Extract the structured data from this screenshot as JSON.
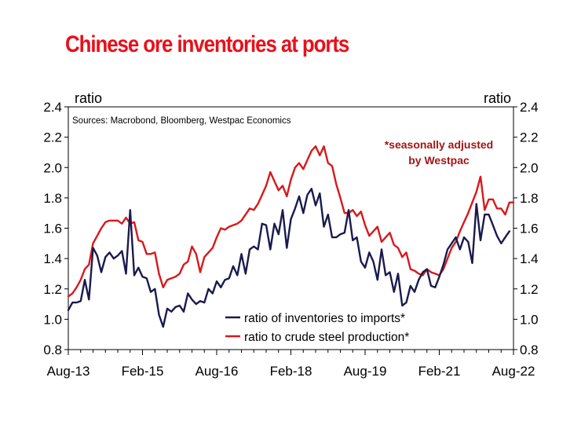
{
  "title": "Chinese ore inventories at ports",
  "chart_data": {
    "type": "line",
    "ylabel_left": "ratio",
    "ylabel_right": "ratio",
    "source": "Sources: Macrobond, Bloomberg, Westpac Economics",
    "annotation": [
      "*seasonally adjusted",
      "by Westpac"
    ],
    "ylim": [
      0.8,
      2.4
    ],
    "yticks": [
      "0.8",
      "1.0",
      "1.2",
      "1.4",
      "1.6",
      "1.8",
      "2.0",
      "2.2",
      "2.4"
    ],
    "x_start": "2013-08",
    "xlim_months": [
      0,
      108
    ],
    "xticks": [
      {
        "label": "Aug-13",
        "month": 0
      },
      {
        "label": "Feb-15",
        "month": 18
      },
      {
        "label": "Aug-16",
        "month": 36
      },
      {
        "label": "Feb-18",
        "month": 54
      },
      {
        "label": "Aug-19",
        "month": 72
      },
      {
        "label": "Feb-21",
        "month": 90
      },
      {
        "label": "Aug-22",
        "month": 108
      }
    ],
    "legend_position": "bottom-right",
    "series": [
      {
        "name": "ratio of inventories to imports*",
        "color": "#1a1a4e",
        "values": [
          1.06,
          1.11,
          1.11,
          1.12,
          1.26,
          1.13,
          1.47,
          1.42,
          1.31,
          1.41,
          1.44,
          1.4,
          1.42,
          1.45,
          1.3,
          1.72,
          1.29,
          1.34,
          1.28,
          1.27,
          1.18,
          1.2,
          1.03,
          0.95,
          1.07,
          1.05,
          1.08,
          1.09,
          1.05,
          1.17,
          1.13,
          1.1,
          1.12,
          1.11,
          1.2,
          1.17,
          1.25,
          1.21,
          1.26,
          1.27,
          1.35,
          1.29,
          1.43,
          1.3,
          1.46,
          1.48,
          1.46,
          1.63,
          1.62,
          1.46,
          1.63,
          1.56,
          1.72,
          1.47,
          1.66,
          1.73,
          1.81,
          1.7,
          1.82,
          1.86,
          1.75,
          1.83,
          1.61,
          1.69,
          1.54,
          1.54,
          1.56,
          1.57,
          1.72,
          1.52,
          1.54,
          1.38,
          1.34,
          1.44,
          1.38,
          1.26,
          1.46,
          1.29,
          1.31,
          1.18,
          1.3,
          1.09,
          1.11,
          1.22,
          1.18,
          1.26,
          1.31,
          1.33,
          1.22,
          1.21,
          1.28,
          1.36,
          1.46,
          1.5,
          1.54,
          1.46,
          1.54,
          1.51,
          1.37,
          1.76,
          1.52,
          1.69,
          1.69,
          1.62,
          1.55,
          1.5,
          1.54,
          1.58
        ]
      },
      {
        "name": "ratio to crude steel production*",
        "color": "#d7191c",
        "values": [
          1.15,
          1.17,
          1.21,
          1.26,
          1.33,
          1.36,
          1.5,
          1.55,
          1.6,
          1.64,
          1.65,
          1.65,
          1.65,
          1.63,
          1.67,
          1.63,
          1.64,
          1.52,
          1.51,
          1.43,
          1.43,
          1.44,
          1.3,
          1.21,
          1.26,
          1.27,
          1.28,
          1.3,
          1.36,
          1.38,
          1.48,
          1.43,
          1.31,
          1.41,
          1.44,
          1.47,
          1.54,
          1.6,
          1.59,
          1.61,
          1.62,
          1.63,
          1.65,
          1.69,
          1.73,
          1.72,
          1.76,
          1.82,
          1.88,
          1.97,
          1.91,
          1.85,
          1.88,
          1.81,
          1.92,
          2.0,
          2.03,
          1.99,
          2.05,
          2.11,
          2.14,
          2.08,
          2.14,
          2.03,
          2.01,
          1.89,
          1.8,
          1.7,
          1.7,
          1.72,
          1.68,
          1.71,
          1.62,
          1.55,
          1.58,
          1.61,
          1.51,
          1.54,
          1.57,
          1.49,
          1.47,
          1.41,
          1.44,
          1.33,
          1.32,
          1.3,
          1.29,
          1.33,
          1.31,
          1.3,
          1.29,
          1.33,
          1.4,
          1.47,
          1.51,
          1.58,
          1.64,
          1.7,
          1.77,
          1.84,
          1.94,
          1.72,
          1.79,
          1.79,
          1.73,
          1.73,
          1.69,
          1.77,
          1.77
        ]
      }
    ]
  }
}
